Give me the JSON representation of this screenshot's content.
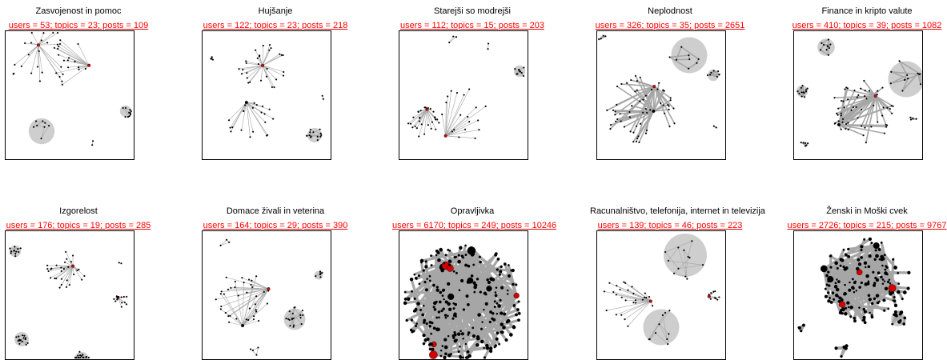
{
  "colors": {
    "stats": "#ff0000",
    "edge": "#a6a6a6",
    "node": "#000000",
    "highlight": "#d40000",
    "frame": "#000000"
  },
  "chart_data": [
    {
      "type": "network",
      "title": "Zasvojenost in pomoc",
      "stats": "users = 53; topics = 23; posts = 109",
      "users": 53,
      "topics": 23,
      "posts": 109
    },
    {
      "type": "network",
      "title": "Hujšanje",
      "stats": "users = 122; topics = 23; posts = 218",
      "users": 122,
      "topics": 23,
      "posts": 218
    },
    {
      "type": "network",
      "title": "Starejši so modrejši",
      "stats": "users = 112; topics = 15; posts = 203",
      "users": 112,
      "topics": 15,
      "posts": 203
    },
    {
      "type": "network",
      "title": "Neplodnost",
      "stats": "users = 326; topics = 35; posts = 2651",
      "users": 326,
      "topics": 35,
      "posts": 2651
    },
    {
      "type": "network",
      "title": "Finance in kripto valute",
      "stats": "users = 410; topics = 39; posts = 1082",
      "users": 410,
      "topics": 39,
      "posts": 1082
    },
    {
      "type": "network",
      "title": "Izgorelost",
      "stats": "users = 176; topics = 19; posts = 285",
      "users": 176,
      "topics": 19,
      "posts": 285
    },
    {
      "type": "network",
      "title": "Domace živali in veterina",
      "stats": "users = 164; topics = 29; posts = 390",
      "users": 164,
      "topics": 29,
      "posts": 390
    },
    {
      "type": "network",
      "title": "Opravljivka",
      "stats": "users = 6170; topics = 249; posts = 10246",
      "users": 6170,
      "topics": 249,
      "posts": 10246
    },
    {
      "type": "network",
      "title": "Racunalništvo, telefonija, internet in televizija",
      "stats": "users = 139; topics = 46; posts = 223",
      "users": 139,
      "topics": 46,
      "posts": 223
    },
    {
      "type": "network",
      "title": "Ženski in Moški cvek",
      "stats": "users = 2726; topics = 215; posts = 9767",
      "users": 2726,
      "topics": 215,
      "posts": 9767
    }
  ]
}
